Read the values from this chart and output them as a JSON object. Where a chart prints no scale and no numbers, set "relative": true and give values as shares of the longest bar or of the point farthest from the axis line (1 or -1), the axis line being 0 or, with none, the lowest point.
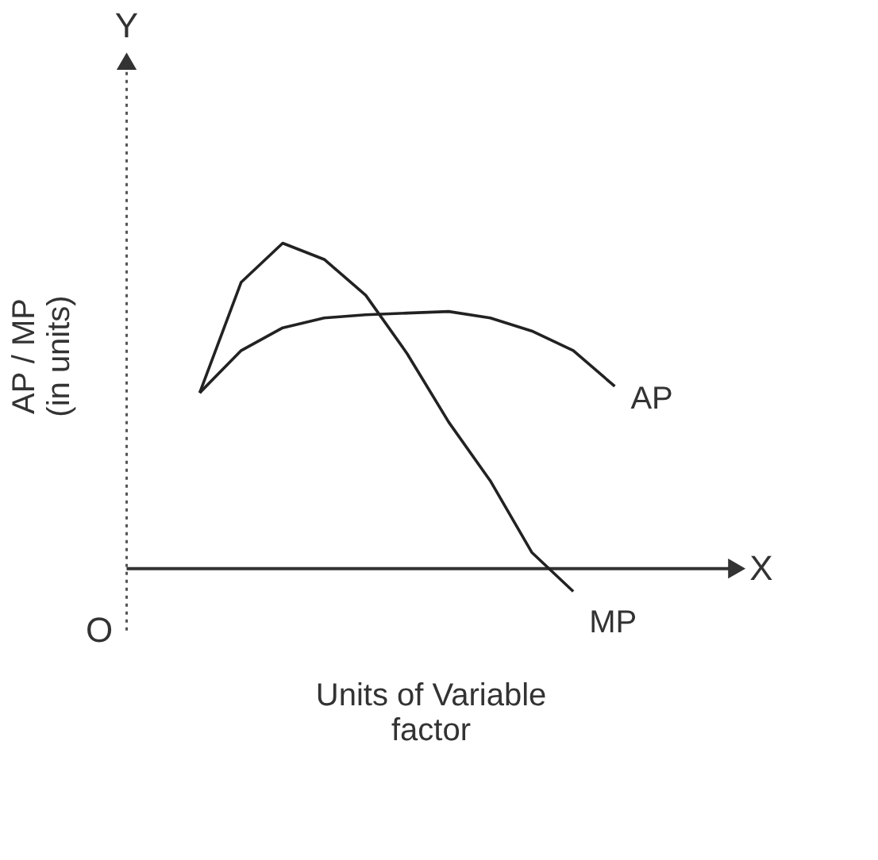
{
  "chart_data": {
    "type": "line",
    "relative": true,
    "xlabel": "Units of Variable\nfactor",
    "ylabel": "AP / MP\n(in units)",
    "annotations": [
      "Y",
      "X",
      "O"
    ],
    "categories": [
      null,
      null,
      null,
      null,
      null,
      null,
      null,
      null,
      null,
      null,
      null
    ],
    "line_style": "solid",
    "series": [
      {
        "name": "AP",
        "color": "#222222",
        "values": [
          0.54,
          0.67,
          0.74,
          0.77,
          0.78,
          0.785,
          0.79,
          0.77,
          0.73,
          0.67,
          0.56
        ]
      },
      {
        "name": "MP",
        "color": "#222222",
        "values": [
          0.54,
          0.88,
          1.0,
          0.95,
          0.84,
          0.66,
          0.45,
          0.27,
          0.05,
          -0.07,
          null
        ]
      }
    ]
  }
}
